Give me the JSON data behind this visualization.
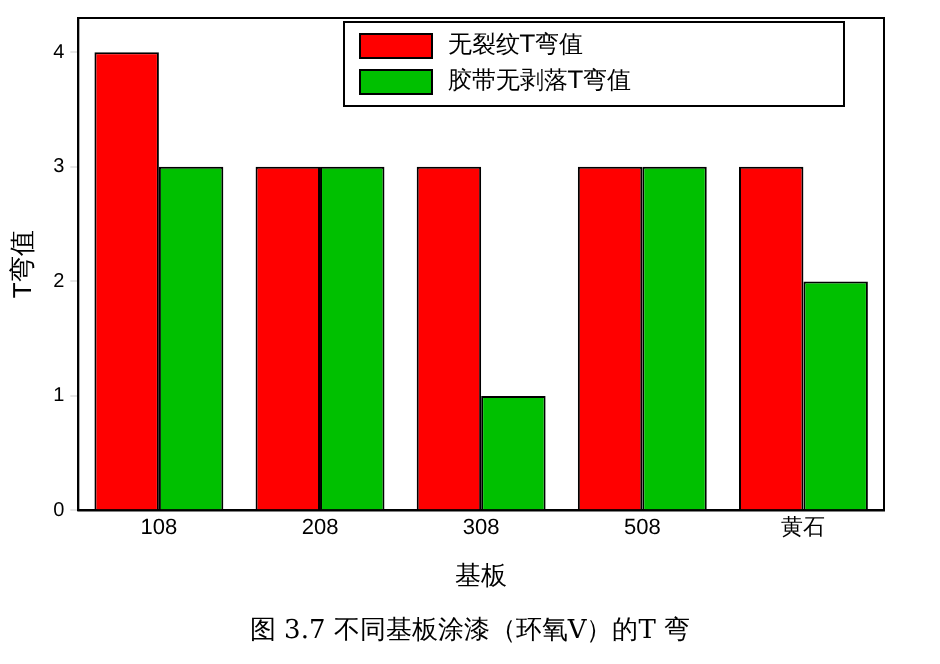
{
  "chart_data": {
    "type": "bar",
    "title": "图 3.7 不同基板涂漆（环氧V）的T 弯",
    "xlabel": "基板",
    "ylabel": "T弯值",
    "categories": [
      "108",
      "208",
      "308",
      "508",
      "黄石"
    ],
    "series": [
      {
        "name": "无裂纹T弯值",
        "color": "#ff0000",
        "values": [
          4,
          3,
          3,
          3,
          3
        ]
      },
      {
        "name": "胶带无剥落T弯值",
        "color": "#00c000",
        "values": [
          3,
          3,
          1,
          3,
          2
        ]
      }
    ],
    "ylim": [
      0,
      4.3
    ],
    "yticks": [
      0,
      1,
      2,
      3,
      4
    ],
    "grid": false,
    "legend": "top right"
  }
}
